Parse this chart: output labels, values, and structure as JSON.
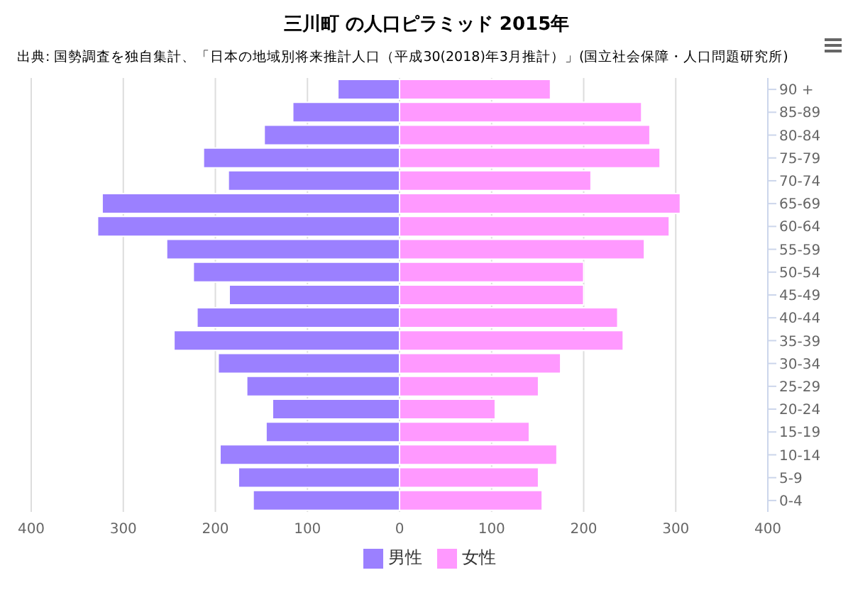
{
  "chart_data": {
    "type": "bar",
    "orientation": "horizontal",
    "stacked": true,
    "title": "三川町 の人口ピラミッド 2015年",
    "subtitle": "出典: 国勢調査を独自集計、「日本の地域別将来推計人口（平成30(2018)年3月推計）」(国立社会保障・人口問題研究所)",
    "categories": [
      "90 +",
      "85-89",
      "80-84",
      "75-79",
      "70-74",
      "65-69",
      "60-64",
      "55-59",
      "50-54",
      "45-49",
      "40-44",
      "35-39",
      "30-34",
      "25-29",
      "20-24",
      "15-19",
      "10-14",
      "5-9",
      "0-4"
    ],
    "series": [
      {
        "name": "男性",
        "color": "#9b80ff",
        "values": [
          -67,
          -116,
          -147,
          -213,
          -186,
          -323,
          -328,
          -253,
          -224,
          -185,
          -220,
          -245,
          -197,
          -166,
          -138,
          -145,
          -195,
          -175,
          -159
        ]
      },
      {
        "name": "女性",
        "color": "#ff99ff",
        "values": [
          164,
          263,
          272,
          283,
          208,
          305,
          293,
          266,
          200,
          200,
          237,
          243,
          175,
          151,
          104,
          141,
          171,
          151,
          155
        ]
      }
    ],
    "xlim": [
      -400,
      400
    ],
    "xticks": [
      {
        "value": -400,
        "label": "400"
      },
      {
        "value": -300,
        "label": "300"
      },
      {
        "value": -200,
        "label": "200"
      },
      {
        "value": -100,
        "label": "100"
      },
      0,
      100,
      200,
      300,
      400
    ],
    "grid": "x",
    "legend": "bottom"
  }
}
